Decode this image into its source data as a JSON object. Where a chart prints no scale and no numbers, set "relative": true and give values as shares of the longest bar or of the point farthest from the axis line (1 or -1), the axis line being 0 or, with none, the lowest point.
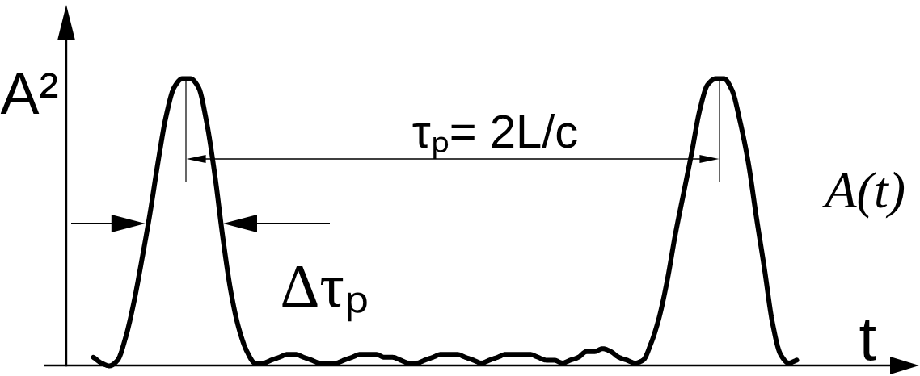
{
  "chart_data": {
    "type": "line",
    "relative": true,
    "ylabel": "A²",
    "xlabel": "t",
    "categories": [
      null,
      null,
      null,
      null,
      null,
      null,
      null,
      null,
      null,
      null,
      null,
      null,
      null,
      null,
      null,
      null,
      null,
      null,
      null,
      null,
      null,
      null,
      null,
      null,
      null,
      null,
      null,
      null,
      null,
      null,
      null,
      null,
      null,
      null,
      null,
      null,
      null,
      null,
      null,
      null,
      null,
      null,
      null,
      null,
      null,
      null,
      null,
      null,
      null,
      null,
      null,
      null,
      null,
      null,
      null,
      null,
      null,
      null,
      null,
      null,
      null,
      null,
      null,
      null,
      null,
      null,
      null,
      null,
      null,
      null,
      null,
      null,
      null,
      null,
      null,
      null,
      null,
      null,
      null,
      null,
      null,
      null,
      null,
      null,
      null,
      null,
      null,
      null
    ],
    "series": [
      {
        "name": "A(t)",
        "color": "#000000",
        "values": [
          0.03,
          0.01,
          0,
          0.02,
          0.1,
          0.22,
          0.37,
          0.53,
          0.71,
          0.87,
          0.97,
          1,
          1,
          0.97,
          0.85,
          0.67,
          0.45,
          0.26,
          0.13,
          0.05,
          0.01,
          0.01,
          0.02,
          0.03,
          0.04,
          0.04,
          0.03,
          0.02,
          0.01,
          0.01,
          0.01,
          0.02,
          0.03,
          0.04,
          0.04,
          0.04,
          0.03,
          0.03,
          0.02,
          0.01,
          0.01,
          0.02,
          0.03,
          0.04,
          0.04,
          0.04,
          0.03,
          0.02,
          0.01,
          0.02,
          0.03,
          0.04,
          0.04,
          0.04,
          0.04,
          0.03,
          0.02,
          0.02,
          0.01,
          0.02,
          0.03,
          0.05,
          0.05,
          0.06,
          0.05,
          0.03,
          0.02,
          0.01,
          0.02,
          0.08,
          0.17,
          0.3,
          0.46,
          0.6,
          0.74,
          0.89,
          0.98,
          1,
          1,
          0.96,
          0.85,
          0.71,
          0.52,
          0.34,
          0.15,
          0.04,
          0.01,
          0.02
        ]
      }
    ],
    "annotations": [
      "τₚ= 2L/c",
      "Δτₚ"
    ]
  }
}
